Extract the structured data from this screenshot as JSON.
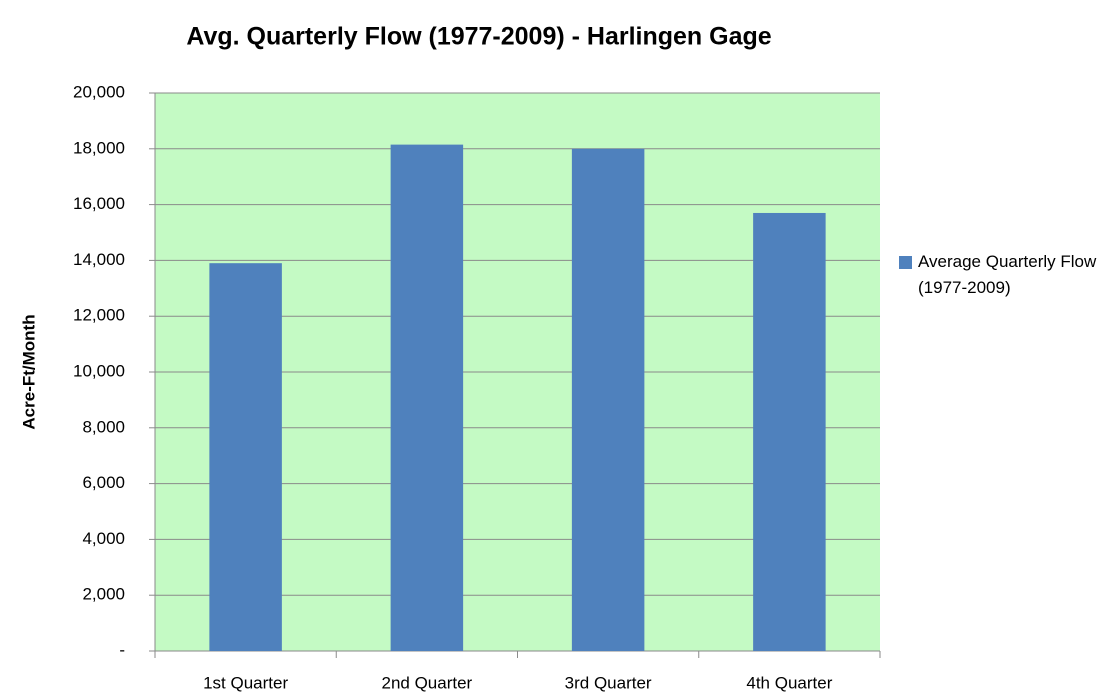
{
  "chart_data": {
    "type": "bar",
    "title": "Avg. Quarterly Flow (1977-2009) - Harlingen Gage",
    "y_label": "Acre-Ft/Month",
    "categories": [
      "1st Quarter",
      "2nd Quarter",
      "3rd Quarter",
      "4th Quarter"
    ],
    "series": [
      {
        "name": "Average Quarterly Flow (1977-2009)",
        "color": "#4f81bd",
        "values": [
          13900,
          18150,
          18000,
          15700
        ]
      }
    ],
    "ylim": [
      0,
      20000
    ],
    "yticks": [
      {
        "value": 0,
        "label": "-"
      },
      {
        "value": 2000,
        "label": "2,000"
      },
      {
        "value": 4000,
        "label": "4,000"
      },
      {
        "value": 6000,
        "label": "6,000"
      },
      {
        "value": 8000,
        "label": "8,000"
      },
      {
        "value": 10000,
        "label": "10,000"
      },
      {
        "value": 12000,
        "label": "12,000"
      },
      {
        "value": 14000,
        "label": "14,000"
      },
      {
        "value": 16000,
        "label": "16,000"
      },
      {
        "value": 18000,
        "label": "18,000"
      },
      {
        "value": 20000,
        "label": "20,000"
      }
    ],
    "grid": true,
    "legend": "right",
    "plot_background": "#c4fac4"
  }
}
